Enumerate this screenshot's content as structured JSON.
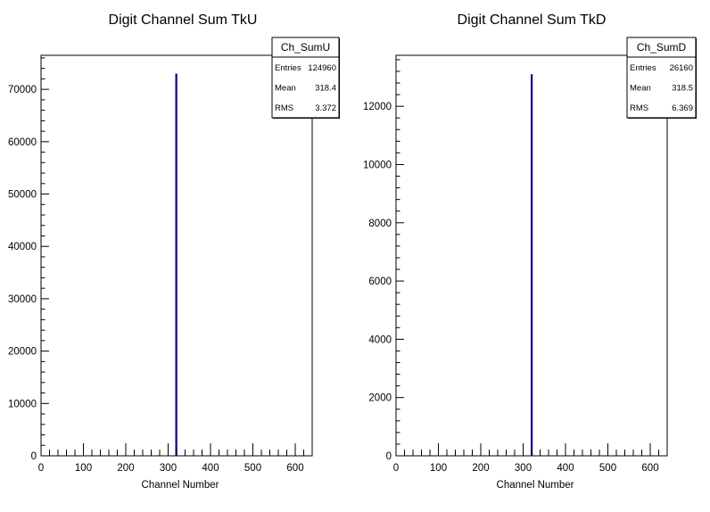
{
  "chart_data": [
    {
      "type": "bar",
      "title": "Digit Channel Sum TkU",
      "xlabel": "Channel Number",
      "ylabel": "",
      "xlim": [
        0,
        640
      ],
      "ylim": [
        0,
        76500
      ],
      "x_ticks": [
        "0",
        "100",
        "200",
        "300",
        "400",
        "500",
        "600"
      ],
      "y_ticks": [
        "0",
        "10000",
        "20000",
        "30000",
        "40000",
        "50000",
        "60000",
        "70000"
      ],
      "bins": [
        {
          "x": 319,
          "value": 73000
        }
      ],
      "bar_color": "#000080",
      "stats": {
        "name": "Ch_SumU",
        "rows": [
          {
            "label": "Entries",
            "value": "124960"
          },
          {
            "label": "Mean",
            "value": "318.4"
          },
          {
            "label": "RMS",
            "value": "3.372"
          }
        ]
      }
    },
    {
      "type": "bar",
      "title": "Digit Channel Sum TkD",
      "xlabel": "Channel Number",
      "ylabel": "",
      "xlim": [
        0,
        640
      ],
      "ylim": [
        0,
        13750
      ],
      "x_ticks": [
        "0",
        "100",
        "200",
        "300",
        "400",
        "500",
        "600"
      ],
      "y_ticks": [
        "0",
        "2000",
        "4000",
        "6000",
        "8000",
        "10000",
        "12000"
      ],
      "bins": [
        {
          "x": 320,
          "value": 13100
        }
      ],
      "bar_color": "#000080",
      "stats": {
        "name": "Ch_SumD",
        "rows": [
          {
            "label": "Entries",
            "value": "26160"
          },
          {
            "label": "Mean",
            "value": "318.5"
          },
          {
            "label": "RMS",
            "value": "6.369"
          }
        ]
      }
    }
  ]
}
